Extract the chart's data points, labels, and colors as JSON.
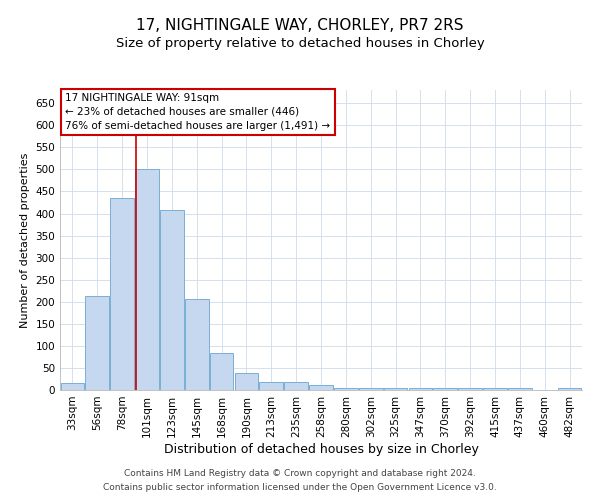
{
  "title": "17, NIGHTINGALE WAY, CHORLEY, PR7 2RS",
  "subtitle": "Size of property relative to detached houses in Chorley",
  "xlabel": "Distribution of detached houses by size in Chorley",
  "ylabel": "Number of detached properties",
  "categories": [
    "33sqm",
    "56sqm",
    "78sqm",
    "101sqm",
    "123sqm",
    "145sqm",
    "168sqm",
    "190sqm",
    "213sqm",
    "235sqm",
    "258sqm",
    "280sqm",
    "302sqm",
    "325sqm",
    "347sqm",
    "370sqm",
    "392sqm",
    "415sqm",
    "437sqm",
    "460sqm",
    "482sqm"
  ],
  "values": [
    15,
    213,
    436,
    502,
    407,
    207,
    85,
    38,
    18,
    18,
    11,
    5,
    5,
    5,
    5,
    5,
    5,
    5,
    5,
    0,
    5
  ],
  "bar_color": "#c5d8f0",
  "bar_edge_color": "#7aafd4",
  "grid_color": "#d0dcea",
  "background_color": "#ffffff",
  "annotation_line1": "17 NIGHTINGALE WAY: 91sqm",
  "annotation_line2": "← 23% of detached houses are smaller (446)",
  "annotation_line3": "76% of semi-detached houses are larger (1,491) →",
  "annotation_box_color": "#ffffff",
  "annotation_box_edge": "#cc0000",
  "ylim": [
    0,
    680
  ],
  "yticks": [
    0,
    50,
    100,
    150,
    200,
    250,
    300,
    350,
    400,
    450,
    500,
    550,
    600,
    650
  ],
  "footnote1": "Contains HM Land Registry data © Crown copyright and database right 2024.",
  "footnote2": "Contains public sector information licensed under the Open Government Licence v3.0.",
  "title_fontsize": 11,
  "subtitle_fontsize": 9.5,
  "xlabel_fontsize": 9,
  "ylabel_fontsize": 8,
  "tick_fontsize": 7.5,
  "annotation_fontsize": 7.5,
  "footnote_fontsize": 6.5
}
